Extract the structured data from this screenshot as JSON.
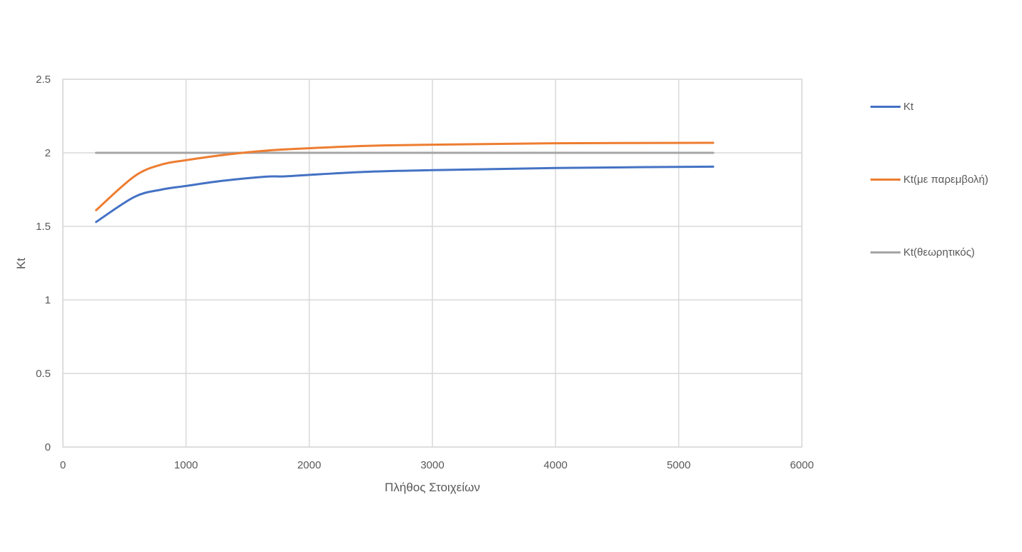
{
  "chart_data": {
    "type": "line",
    "title": "",
    "xlabel": "Πλήθος Στοιχείων",
    "ylabel": "Kt",
    "xlim": [
      0,
      6000
    ],
    "ylim": [
      0,
      2.5
    ],
    "x_ticks": [
      "0",
      "1000",
      "2000",
      "3000",
      "4000",
      "5000",
      "6000"
    ],
    "y_ticks": [
      "0",
      "0.5",
      "1",
      "1.5",
      "2",
      "2.5"
    ],
    "grid": true,
    "legend_position": "right",
    "series": [
      {
        "name": "Kt",
        "color": "#4472C4",
        "points": [
          [
            270,
            1.53
          ],
          [
            580,
            1.7
          ],
          [
            800,
            1.75
          ],
          [
            1000,
            1.775
          ],
          [
            1300,
            1.81
          ],
          [
            1650,
            1.838
          ],
          [
            1800,
            1.84
          ],
          [
            2100,
            1.855
          ],
          [
            2500,
            1.872
          ],
          [
            3000,
            1.882
          ],
          [
            4000,
            1.897
          ],
          [
            5280,
            1.906
          ]
        ]
      },
      {
        "name": "Kt(με παρεμβολή)",
        "color": "#ED7D31",
        "points": [
          [
            270,
            1.61
          ],
          [
            580,
            1.84
          ],
          [
            800,
            1.92
          ],
          [
            1000,
            1.95
          ],
          [
            1300,
            1.985
          ],
          [
            1700,
            2.018
          ],
          [
            2100,
            2.035
          ],
          [
            2500,
            2.048
          ],
          [
            3000,
            2.055
          ],
          [
            4000,
            2.065
          ],
          [
            5280,
            2.068
          ]
        ]
      },
      {
        "name": "Kt(θεωρητικός)",
        "color": "#A5A5A5",
        "points": [
          [
            270,
            2.0
          ],
          [
            5280,
            2.0
          ]
        ]
      }
    ]
  }
}
